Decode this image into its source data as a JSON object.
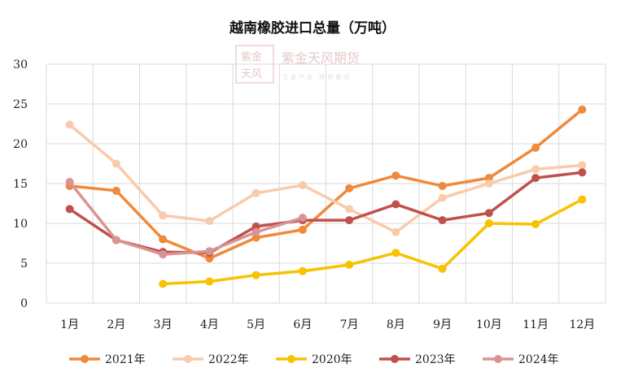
{
  "chart_data": {
    "type": "line",
    "title": "越南橡胶进口总量（万吨）",
    "categories": [
      "1月",
      "2月",
      "3月",
      "4月",
      "5月",
      "6月",
      "7月",
      "8月",
      "9月",
      "10月",
      "11月",
      "12月"
    ],
    "ylim": [
      0,
      30
    ],
    "yticks": [
      "0",
      "5",
      "10",
      "15",
      "20",
      "25",
      "30"
    ],
    "grid": true,
    "legend_position": "bottom",
    "series": [
      {
        "name": "2021年",
        "color": "#F0893A",
        "values": [
          14.7,
          14.1,
          8.0,
          5.6,
          8.2,
          9.2,
          14.4,
          16.0,
          14.7,
          15.7,
          19.5,
          24.3
        ]
      },
      {
        "name": "2022年",
        "color": "#F8CBAA",
        "values": [
          22.4,
          17.5,
          11.0,
          10.3,
          13.8,
          14.8,
          11.8,
          8.9,
          13.2,
          15.0,
          16.8,
          17.3
        ]
      },
      {
        "name": "2020年",
        "color": "#F7C200",
        "values": [
          null,
          null,
          2.4,
          2.7,
          3.5,
          4.0,
          4.8,
          6.3,
          4.3,
          10.0,
          9.9,
          13.0
        ]
      },
      {
        "name": "2023年",
        "color": "#C0504D",
        "values": [
          11.8,
          7.9,
          6.4,
          6.3,
          9.6,
          10.4,
          10.4,
          12.4,
          10.4,
          11.3,
          15.7,
          16.4
        ]
      },
      {
        "name": "2024年",
        "color": "#D99393",
        "values": [
          15.2,
          7.9,
          6.1,
          6.5,
          8.9,
          10.7,
          null,
          null,
          null,
          null,
          null,
          null
        ]
      }
    ]
  },
  "watermark": {
    "logo_text": "紫金天风",
    "brand": "紫金天风期货",
    "tagline": "立足产业 研究驱动",
    "color": "#d9a7a7"
  }
}
